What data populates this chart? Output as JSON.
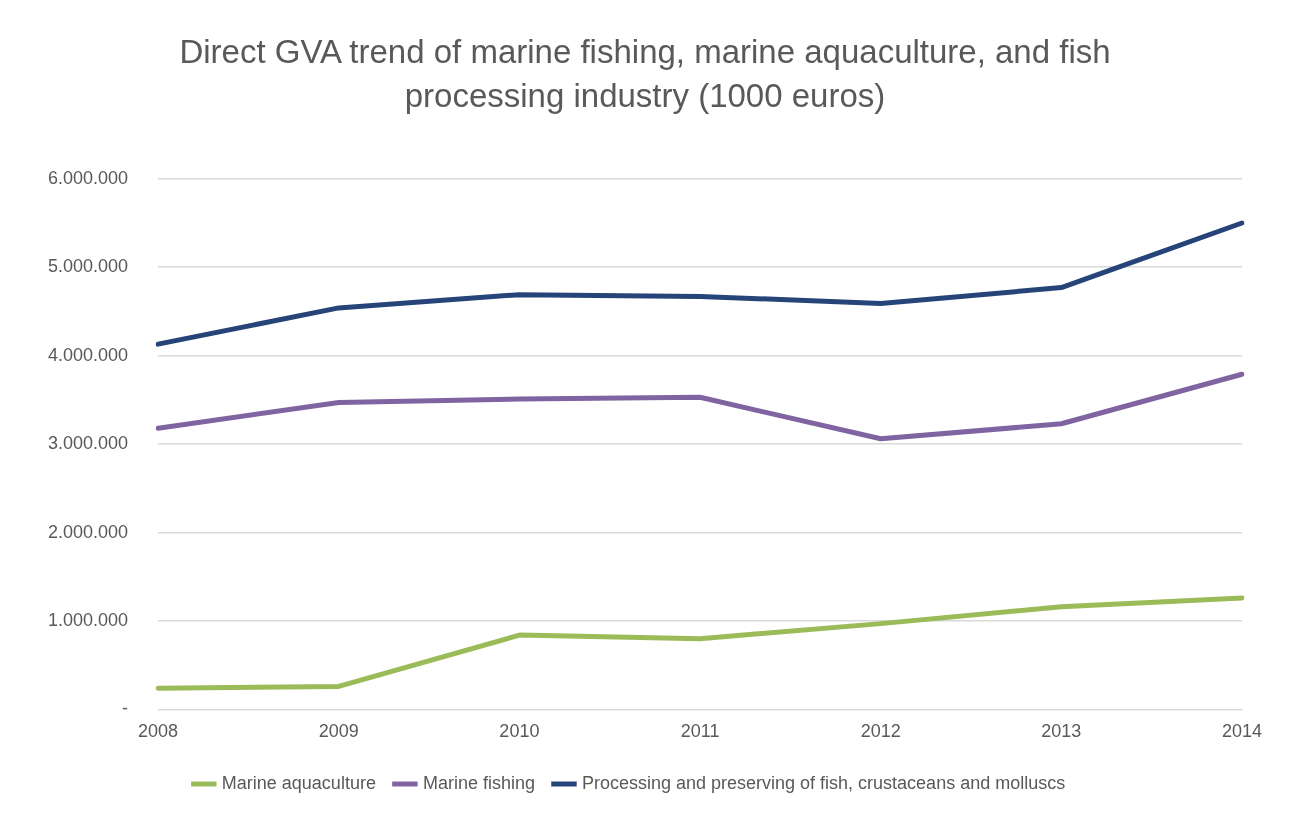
{
  "chart_data": {
    "type": "line",
    "title": "Direct GVA trend of marine fishing, marine aquaculture, and fish processing industry (1000 euros)",
    "categories": [
      "2008",
      "2009",
      "2010",
      "2011",
      "2012",
      "2013",
      "2014"
    ],
    "series": [
      {
        "name": "Marine aquaculture",
        "color": "#9bbb59",
        "values": [
          240000,
          260000,
          840000,
          800000,
          970000,
          1160000,
          1260000
        ]
      },
      {
        "name": "Marine fishing",
        "color": "#8064a2",
        "values": [
          3180000,
          3470000,
          3510000,
          3530000,
          3060000,
          3230000,
          3790000
        ]
      },
      {
        "name": "Processing and preserving of fish, crustaceans and molluscs",
        "color": "#264478",
        "values": [
          4130000,
          4540000,
          4690000,
          4670000,
          4590000,
          4770000,
          5500000
        ]
      }
    ],
    "ylim": [
      0,
      6000000
    ],
    "yticks": [
      {
        "value": 0,
        "label": "-"
      },
      {
        "value": 1000000,
        "label": "1.000.000"
      },
      {
        "value": 2000000,
        "label": "2.000.000"
      },
      {
        "value": 3000000,
        "label": "3.000.000"
      },
      {
        "value": 4000000,
        "label": "4.000.000"
      },
      {
        "value": 5000000,
        "label": "5.000.000"
      },
      {
        "value": 6000000,
        "label": "6.000.000"
      }
    ],
    "grid": "y",
    "legend": "bottom",
    "marker": "none",
    "line_style": "solid"
  }
}
